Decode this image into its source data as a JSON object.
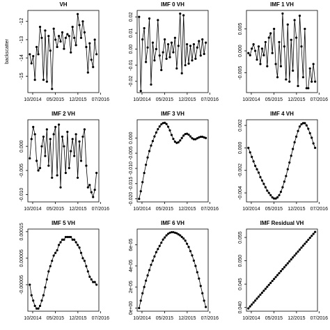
{
  "chart_data": [
    {
      "type": "line",
      "title": "VH",
      "y_label": "backscatter",
      "color": "#000000",
      "x": [
        8.1,
        8.63,
        9.16,
        9.69,
        10.22,
        10.75,
        11.28,
        11.81,
        12.34,
        12.87,
        13.4,
        13.93,
        14.46,
        14.99,
        15.52,
        16.05,
        16.58,
        17.11,
        17.64,
        18.17,
        18.7,
        19.23,
        19.76,
        20.29,
        20.82,
        21.35,
        21.88,
        22.41,
        22.94,
        23.47,
        24.0,
        24.53,
        25.06,
        25.59,
        26.12,
        26.65,
        27.18,
        27.71,
        28.24,
        28.77
      ],
      "values": [
        -13.8,
        -14.3,
        -13.9,
        -15.2,
        -13.4,
        -13.8,
        -12.3,
        -12.9,
        -15.2,
        -12.5,
        -15.3,
        -12.8,
        -13.6,
        -15.7,
        -12.4,
        -13.0,
        -13.4,
        -12.8,
        -13.1,
        -12.6,
        -13.5,
        -12.9,
        -12.7,
        -12.8,
        -13.7,
        -12.3,
        -12.9,
        -13.3,
        -11.6,
        -12.2,
        -12.9,
        -12.0,
        -12.6,
        -13.4,
        -14.8,
        -13.2,
        -14.1,
        -14.5,
        -13.0,
        -13.8
      ],
      "xlim": [
        7.5,
        29.5
      ],
      "xticks": [
        {
          "value": 9,
          "label": "10/2014"
        },
        {
          "value": 16,
          "label": "05/2015"
        },
        {
          "value": 23,
          "label": "12/2015"
        },
        {
          "value": 30,
          "label": "07/2016"
        }
      ],
      "ylim": [
        -15.9,
        -11.4
      ],
      "yticks": [
        -15,
        -14,
        -13,
        -12
      ]
    },
    {
      "type": "line",
      "title": "IMF 0 VH",
      "color": "#000000",
      "x": [
        8.1,
        8.63,
        9.16,
        9.69,
        10.22,
        10.75,
        11.28,
        11.81,
        12.34,
        12.87,
        13.4,
        13.93,
        14.46,
        14.99,
        15.52,
        16.05,
        16.58,
        17.11,
        17.64,
        18.17,
        18.7,
        19.23,
        19.76,
        20.29,
        20.82,
        21.35,
        21.88,
        22.41,
        22.94,
        23.47,
        24.0,
        24.53,
        25.06,
        25.59,
        26.12,
        26.65,
        27.18,
        27.71,
        28.24,
        28.77
      ],
      "values": [
        0.02,
        -0.026,
        0.006,
        0.013,
        -0.008,
        0.001,
        0.019,
        -0.022,
        0.004,
        -0.007,
        0.0,
        0.018,
        -0.004,
        -0.013,
        -0.002,
        0.006,
        -0.006,
        0.003,
        -0.005,
        0.004,
        -0.002,
        0.007,
        -0.012,
        0.002,
        0.022,
        -0.015,
        0.021,
        -0.01,
        0.003,
        -0.009,
        0.002,
        -0.007,
        0.003,
        -0.006,
        0.001,
        0.005,
        -0.004,
        0.006,
        -0.003,
        0.004
      ],
      "xlim": [
        7.5,
        29.5
      ],
      "xticks": [
        {
          "value": 9,
          "label": "10/2014"
        },
        {
          "value": 16,
          "label": "05/2015"
        },
        {
          "value": 23,
          "label": "12/2015"
        },
        {
          "value": 30,
          "label": "07/2016"
        }
      ],
      "ylim": [
        -0.027,
        0.024
      ],
      "yticks": [
        -0.02,
        -0.01,
        {
          "value": 0,
          "label": "0.00"
        },
        0.01,
        0.02
      ]
    },
    {
      "type": "line",
      "title": "IMF 1 VH",
      "color": "#000000",
      "x": [
        8.1,
        8.63,
        9.16,
        9.69,
        10.22,
        10.75,
        11.28,
        11.81,
        12.34,
        12.87,
        13.4,
        13.93,
        14.46,
        14.99,
        15.52,
        16.05,
        16.58,
        17.11,
        17.64,
        18.17,
        18.7,
        19.23,
        19.76,
        20.29,
        20.82,
        21.35,
        21.88,
        22.41,
        22.94,
        23.47,
        24.0,
        24.53,
        25.06,
        25.59,
        26.12,
        26.65,
        27.18,
        27.71,
        28.24,
        28.77
      ],
      "values": [
        -0.0005,
        -0.001,
        0.0005,
        0.0015,
        0.0,
        -0.002,
        0.001,
        -0.003,
        0.0005,
        -0.001,
        0.002,
        -0.0035,
        0.003,
        0.004,
        -0.0005,
        0.005,
        -0.003,
        -0.006,
        0.002,
        -0.0035,
        0.0085,
        0.001,
        -0.0065,
        0.006,
        -0.007,
        0.0025,
        -0.0045,
        0.007,
        0.003,
        -0.008,
        0.008,
        0.001,
        -0.006,
        0.005,
        -0.0085,
        -0.0085,
        -0.004,
        -0.007,
        -0.003,
        -0.007
      ],
      "xlim": [
        7.5,
        29.5
      ],
      "xticks": [
        {
          "value": 9,
          "label": "10/2014"
        },
        {
          "value": 16,
          "label": "05/2015"
        },
        {
          "value": 23,
          "label": "12/2015"
        },
        {
          "value": 30,
          "label": "07/2016"
        }
      ],
      "ylim": [
        -0.0095,
        0.0092
      ],
      "yticks": [
        -0.005,
        {
          "value": 0,
          "label": "0.000"
        },
        0.005
      ]
    },
    {
      "type": "line",
      "title": "IMF 2 VH",
      "color": "#000000",
      "x": [
        8.1,
        8.63,
        9.16,
        9.69,
        10.22,
        10.75,
        11.28,
        11.81,
        12.34,
        12.87,
        13.4,
        13.93,
        14.46,
        14.99,
        15.52,
        16.05,
        16.58,
        17.11,
        17.64,
        18.17,
        18.7,
        19.23,
        19.76,
        20.29,
        20.82,
        21.35,
        21.88,
        22.41,
        22.94,
        23.47,
        24.0,
        24.53,
        25.06,
        25.59,
        26.12,
        26.65,
        27.18,
        27.71,
        28.24,
        28.77
      ],
      "values": [
        -0.0025,
        0.0015,
        0.004,
        0.0025,
        -0.003,
        -0.005,
        -0.0045,
        0.0,
        0.002,
        -0.002,
        0.0035,
        -0.004,
        0.0015,
        -0.0065,
        0.0025,
        0.004,
        -0.006,
        0.0045,
        -0.0085,
        0.002,
        0.0,
        -0.0055,
        0.003,
        -0.0045,
        -0.001,
        0.0015,
        -0.002,
        0.0025,
        -0.0065,
        0.001,
        -0.003,
        0.002,
        0.0035,
        -0.004,
        -0.0085,
        -0.008,
        -0.0095,
        -0.0105,
        -0.009,
        -0.0055
      ],
      "xlim": [
        7.5,
        29.5
      ],
      "xticks": [
        {
          "value": 9,
          "label": "10/2014"
        },
        {
          "value": 16,
          "label": "05/2015"
        },
        {
          "value": 23,
          "label": "12/2015"
        },
        {
          "value": 30,
          "label": "07/2016"
        }
      ],
      "ylim": [
        -0.0115,
        0.0055
      ],
      "yticks": [
        {
          "value": -0.01,
          "label": "-0.010"
        },
        -0.005,
        {
          "value": 0,
          "label": "0.000"
        }
      ]
    },
    {
      "type": "line",
      "title": "IMF 3 VH",
      "color": "#000000",
      "x": [
        8.1,
        8.63,
        9.16,
        9.69,
        10.22,
        10.75,
        11.28,
        11.81,
        12.34,
        12.87,
        13.4,
        13.93,
        14.46,
        14.99,
        15.52,
        16.05,
        16.58,
        17.11,
        17.64,
        18.17,
        18.7,
        19.23,
        19.76,
        20.29,
        20.82,
        21.35,
        21.88,
        22.41,
        22.94,
        23.47,
        24.0,
        24.53,
        25.06,
        25.59,
        26.12,
        26.65,
        27.18,
        27.71,
        28.24,
        28.77
      ],
      "values": [
        -0.02,
        -0.0175,
        -0.0145,
        -0.0115,
        -0.0088,
        -0.0064,
        -0.0043,
        -0.0025,
        -0.001,
        0.0005,
        0.0018,
        0.0029,
        0.0038,
        0.0045,
        0.0049,
        0.005,
        0.0046,
        0.0037,
        0.0025,
        0.001,
        -0.0003,
        -0.0012,
        -0.0016,
        -0.0014,
        -0.0008,
        0.0,
        0.0008,
        0.0013,
        0.0014,
        0.0011,
        0.0005,
        -0.0001,
        -0.0004,
        -0.0004,
        -0.0001,
        0.0002,
        0.0004,
        0.0004,
        0.0002,
        0.0
      ],
      "xlim": [
        7.5,
        29.5
      ],
      "xticks": [
        {
          "value": 9,
          "label": "10/2014"
        },
        {
          "value": 16,
          "label": "05/2015"
        },
        {
          "value": 23,
          "label": "12/2015"
        },
        {
          "value": 30,
          "label": "07/2016"
        }
      ],
      "ylim": [
        -0.021,
        0.006
      ],
      "yticks": [
        {
          "value": -0.02,
          "label": "-0.020"
        },
        -0.015,
        {
          "value": -0.01,
          "label": "-0.010"
        },
        -0.005,
        {
          "value": 0,
          "label": "0.000"
        }
      ]
    },
    {
      "type": "line",
      "title": "IMF 4 VH",
      "color": "#000000",
      "x": [
        8.1,
        8.63,
        9.16,
        9.69,
        10.22,
        10.75,
        11.28,
        11.81,
        12.34,
        12.87,
        13.4,
        13.93,
        14.46,
        14.99,
        15.52,
        16.05,
        16.58,
        17.11,
        17.64,
        18.17,
        18.7,
        19.23,
        19.76,
        20.29,
        20.82,
        21.35,
        21.88,
        22.41,
        22.94,
        23.47,
        24.0,
        24.53,
        25.06,
        25.59,
        26.12,
        26.65,
        27.18,
        27.71,
        28.24,
        28.77
      ],
      "values": [
        0.0,
        -0.0004,
        -0.0008,
        -0.0012,
        -0.0016,
        -0.0019,
        -0.0022,
        -0.0026,
        -0.0029,
        -0.0032,
        -0.0035,
        -0.0038,
        -0.004,
        -0.0042,
        -0.0044,
        -0.0045,
        -0.0045,
        -0.0044,
        -0.0042,
        -0.0039,
        -0.0035,
        -0.003,
        -0.0025,
        -0.0019,
        -0.0013,
        -0.0007,
        -0.0001,
        0.0005,
        0.001,
        0.0015,
        0.0019,
        0.0021,
        0.0022,
        0.0022,
        0.002,
        0.0017,
        0.0013,
        0.0009,
        0.0004,
        0.0
      ],
      "xlim": [
        7.5,
        29.5
      ],
      "xticks": [
        {
          "value": 9,
          "label": "10/2014"
        },
        {
          "value": 16,
          "label": "05/2015"
        },
        {
          "value": 23,
          "label": "12/2015"
        },
        {
          "value": 30,
          "label": "07/2016"
        }
      ],
      "ylim": [
        -0.0048,
        0.0025
      ],
      "yticks": [
        -0.004,
        -0.002,
        {
          "value": 0,
          "label": "0.000"
        },
        0.002
      ]
    },
    {
      "type": "line",
      "title": "IMF 5 VH",
      "color": "#000000",
      "x": [
        8.1,
        8.63,
        9.16,
        9.69,
        10.22,
        10.75,
        11.28,
        11.81,
        12.34,
        12.87,
        13.4,
        13.93,
        14.46,
        14.99,
        15.52,
        16.05,
        16.58,
        17.11,
        17.64,
        18.17,
        18.7,
        19.23,
        19.76,
        20.29,
        20.82,
        21.35,
        21.88,
        22.41,
        22.94,
        23.47,
        24.0,
        24.53,
        25.06,
        25.59,
        26.12,
        26.65,
        27.18,
        27.71,
        28.24,
        28.77
      ],
      "values": [
        -5e-05,
        -9e-05,
        -0.00011,
        -0.00013,
        -0.00014,
        -0.00014,
        -0.00013,
        -0.00011,
        -9e-05,
        -6e-05,
        -3e-05,
        0,
        2e-05,
        4e-05,
        6e-05,
        7e-05,
        8e-05,
        0.0001,
        0.00011,
        0.00012,
        0.00012,
        0.00013,
        0.00013,
        0.00013,
        0.00013,
        0.00012,
        0.00012,
        0.00011,
        0.0001,
        9e-05,
        7e-05,
        5e-05,
        4e-05,
        2e-05,
        0,
        -2e-05,
        -3e-05,
        -4e-05,
        -4e-05,
        -5e-05
      ],
      "xlim": [
        7.5,
        29.5
      ],
      "xticks": [
        {
          "value": 9,
          "label": "10/2014"
        },
        {
          "value": 16,
          "label": "05/2015"
        },
        {
          "value": 23,
          "label": "12/2015"
        },
        {
          "value": 30,
          "label": "07/2016"
        }
      ],
      "ylim": [
        -0.00015,
        0.00016
      ],
      "yticks": [
        -5e-05,
        5e-05,
        0.00015
      ]
    },
    {
      "type": "line",
      "title": "IMF 6 VH",
      "color": "#000000",
      "x": [
        8.1,
        8.63,
        9.16,
        9.69,
        10.22,
        10.75,
        11.28,
        11.81,
        12.34,
        12.87,
        13.4,
        13.93,
        14.46,
        14.99,
        15.52,
        16.05,
        16.58,
        17.11,
        17.64,
        18.17,
        18.7,
        19.23,
        19.76,
        20.29,
        20.82,
        21.35,
        21.88,
        22.41,
        22.94,
        23.47,
        24.0,
        24.53,
        25.06,
        25.59,
        26.12,
        26.65,
        27.18,
        27.71,
        28.24,
        28.77
      ],
      "values": [
        0,
        7e-06,
        1.4e-05,
        2e-05,
        2.6e-05,
        3.1e-05,
        3.6e-05,
        4.1e-05,
        4.5e-05,
        4.9e-05,
        5.3e-05,
        5.6e-05,
        5.9e-05,
        6.2e-05,
        6.5e-05,
        6.7e-05,
        6.9e-05,
        7.05e-05,
        7.15e-05,
        7.2e-05,
        7.2e-05,
        7.15e-05,
        7.1e-05,
        7e-05,
        6.9e-05,
        6.75e-05,
        6.6e-05,
        6.4e-05,
        6.1e-05,
        5.8e-05,
        5.4e-05,
        5e-05,
        4.5e-05,
        4e-05,
        3.4e-05,
        2.8e-05,
        2.1e-05,
        1.4e-05,
        7e-06,
        1e-06
      ],
      "xlim": [
        7.5,
        29.5
      ],
      "xticks": [
        {
          "value": 9,
          "label": "10/2014"
        },
        {
          "value": 16,
          "label": "05/2015"
        },
        {
          "value": 23,
          "label": "12/2015"
        },
        {
          "value": 30,
          "label": "07/2016"
        }
      ],
      "ylim": [
        -3e-06,
        7.5e-05
      ],
      "yticks": [
        {
          "value": 0,
          "label": "0e+00"
        },
        {
          "value": 2e-05,
          "label": "2e-05"
        },
        {
          "value": 4e-05,
          "label": "4e-05"
        },
        {
          "value": 6e-05,
          "label": "6e-05"
        }
      ]
    },
    {
      "type": "line",
      "title": "IMF Residual VH",
      "color": "#000000",
      "x": [
        8.1,
        8.63,
        9.16,
        9.69,
        10.22,
        10.75,
        11.28,
        11.81,
        12.34,
        12.87,
        13.4,
        13.93,
        14.46,
        14.99,
        15.52,
        16.05,
        16.58,
        17.11,
        17.64,
        18.17,
        18.7,
        19.23,
        19.76,
        20.29,
        20.82,
        21.35,
        21.88,
        22.41,
        22.94,
        23.47,
        24.0,
        24.53,
        25.06,
        25.59,
        26.12,
        26.65,
        27.18,
        27.71,
        28.24,
        28.77
      ],
      "values": [
        0.0398,
        0.04022,
        0.04064,
        0.04106,
        0.04148,
        0.0419,
        0.04232,
        0.04274,
        0.04316,
        0.04358,
        0.044,
        0.04442,
        0.04484,
        0.04526,
        0.04568,
        0.0461,
        0.04652,
        0.04694,
        0.04736,
        0.04778,
        0.0482,
        0.04862,
        0.04904,
        0.04946,
        0.04988,
        0.0503,
        0.05072,
        0.05114,
        0.05156,
        0.05198,
        0.0524,
        0.05282,
        0.05324,
        0.05366,
        0.05408,
        0.0545,
        0.05492,
        0.05534,
        0.05576,
        0.05618
      ],
      "xlim": [
        7.5,
        29.5
      ],
      "xticks": [
        {
          "value": 9,
          "label": "10/2014"
        },
        {
          "value": 16,
          "label": "05/2015"
        },
        {
          "value": 23,
          "label": "12/2015"
        },
        {
          "value": 30,
          "label": "07/2016"
        }
      ],
      "ylim": [
        0.0392,
        0.0568
      ],
      "yticks": [
        {
          "value": 0.04,
          "label": "0.040"
        },
        0.045,
        {
          "value": 0.05,
          "label": "0.050"
        },
        0.055
      ]
    }
  ]
}
